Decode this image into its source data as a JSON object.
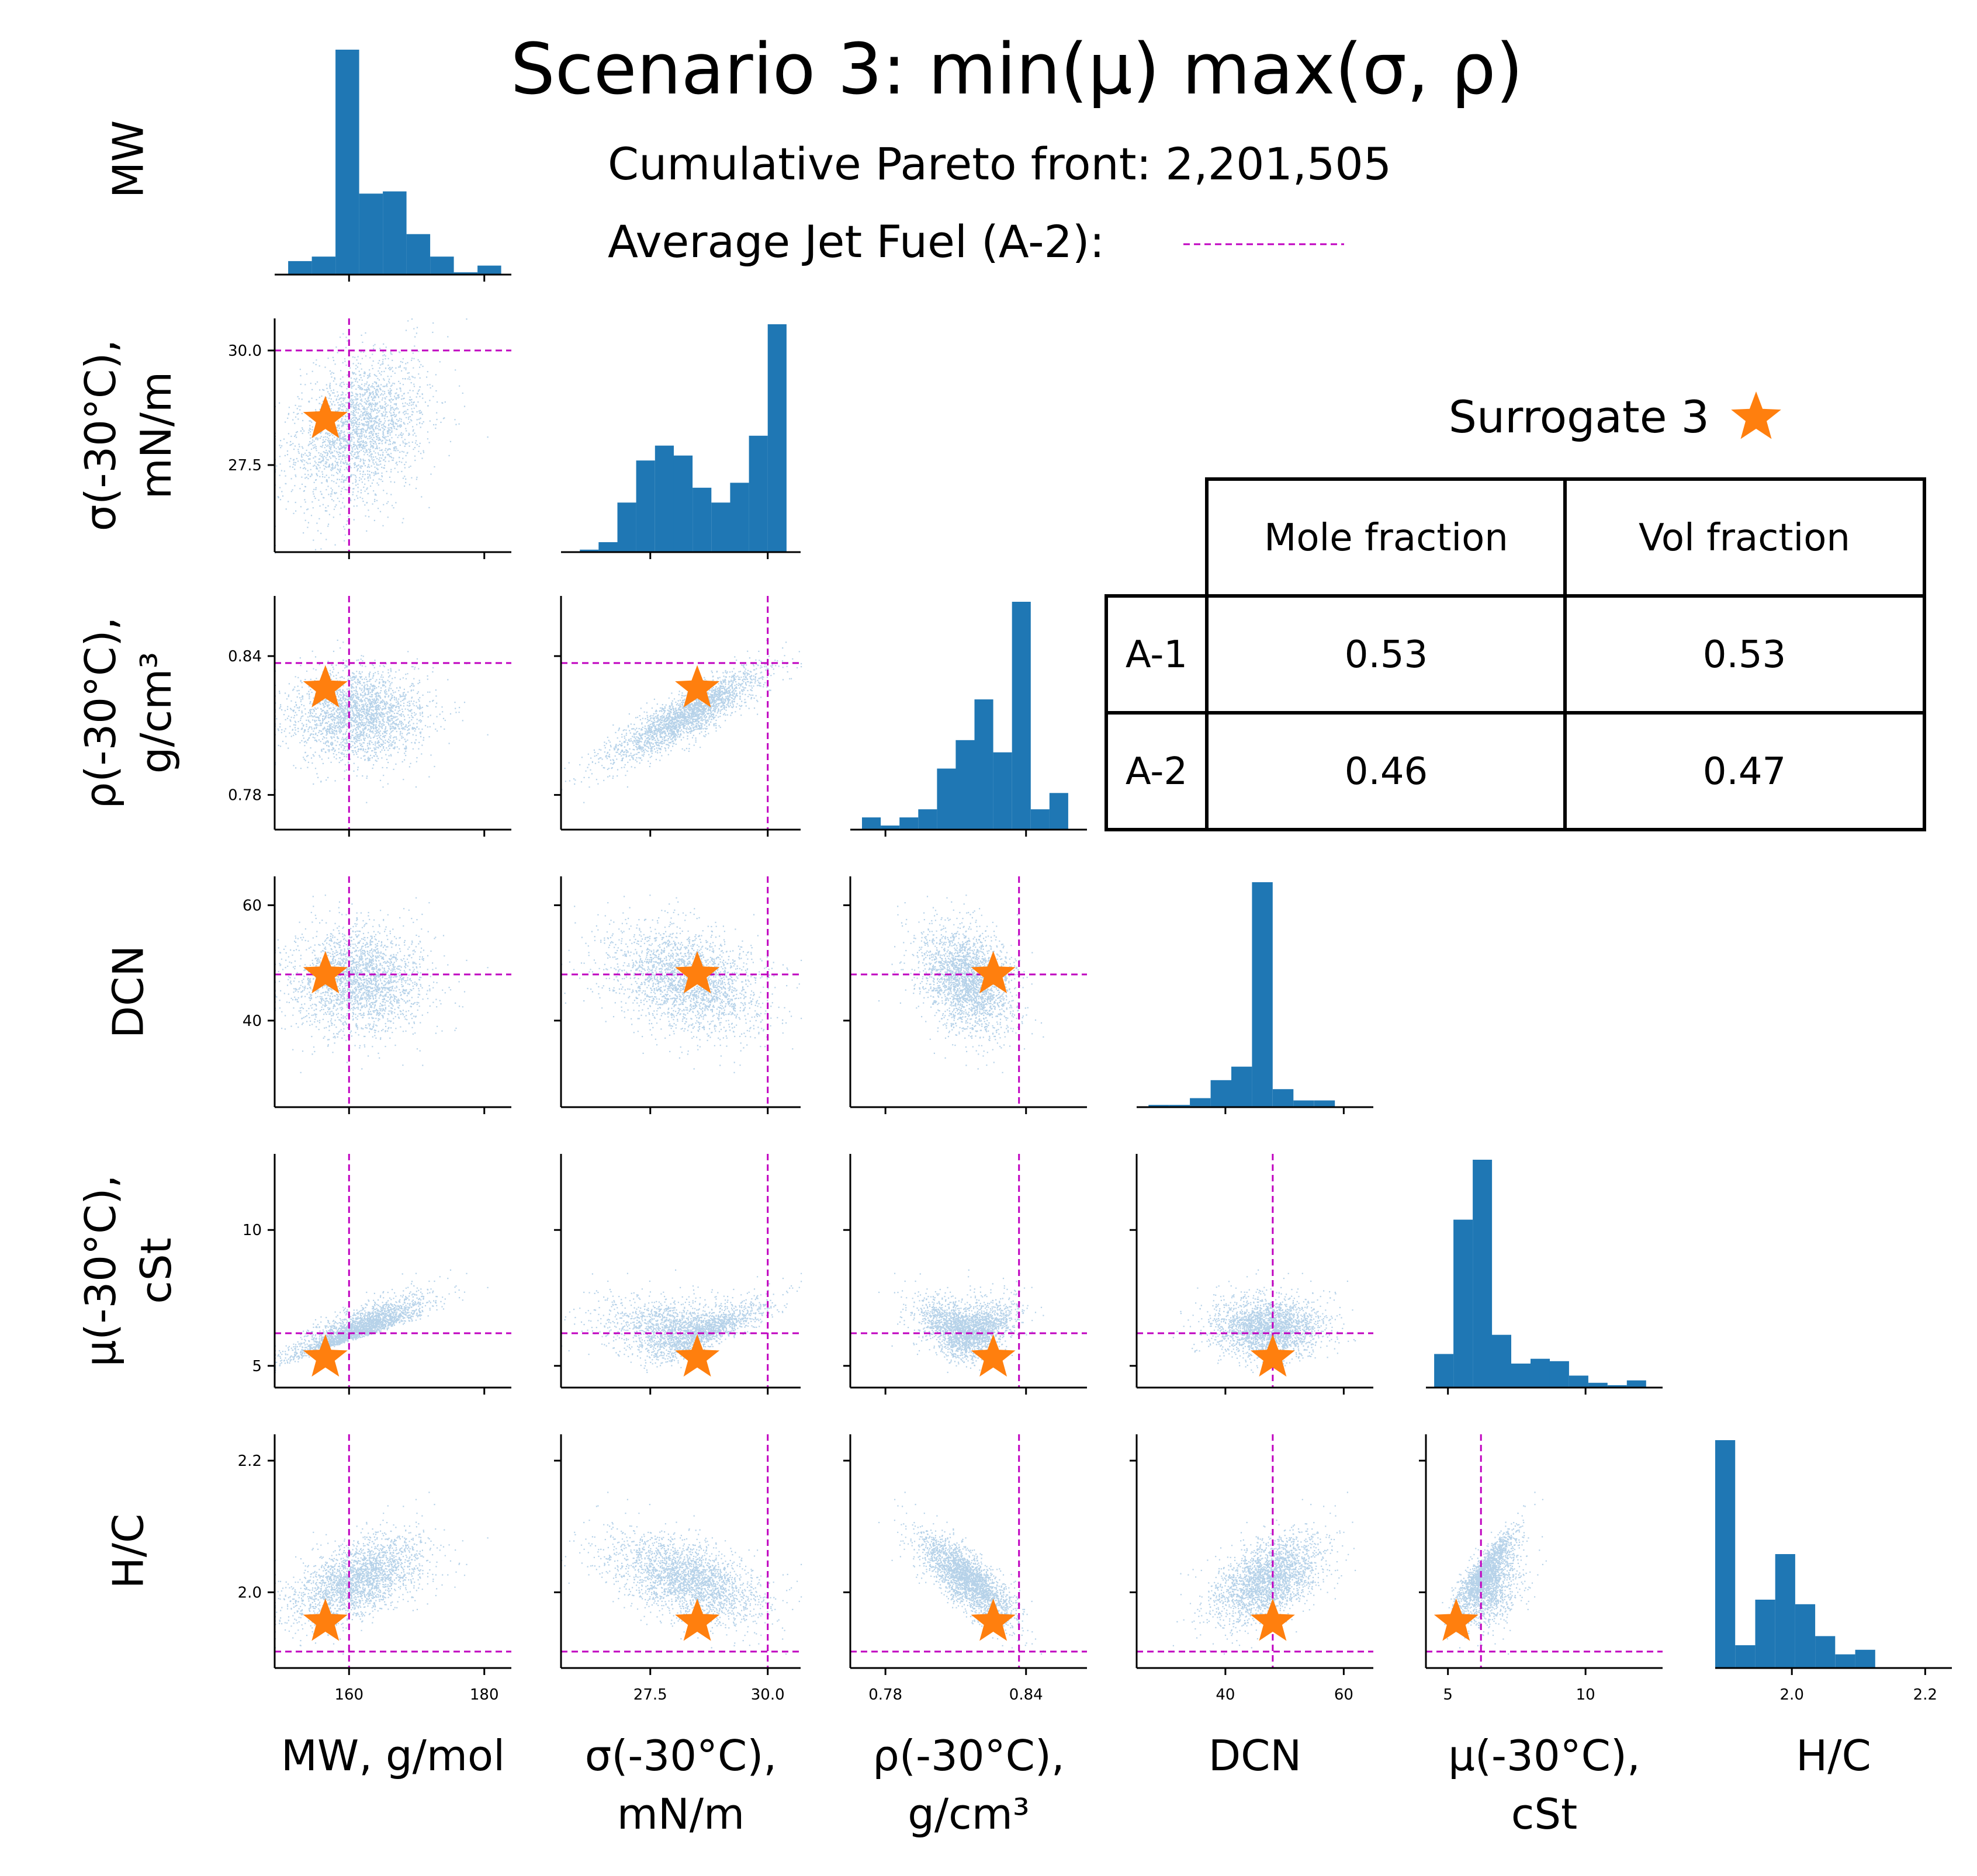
{
  "figure": {
    "title": "Scenario 3: min(μ) max(σ, ρ)",
    "subtitle": "Cumulative Pareto front: 2,201,505",
    "reference_label": "Average Jet Fuel (A-2):",
    "surrogate_label": "Surrogate 3"
  },
  "colors": {
    "hist": "#1f77b4",
    "scatter": "#2f7fc1",
    "reference": "#c000c0",
    "star": "#ff7f0e"
  },
  "table": {
    "columns": [
      "Mole fraction",
      "Vol fraction"
    ],
    "rows": [
      {
        "name": "A-1",
        "mole": "0.53",
        "vol": "0.53"
      },
      {
        "name": "A-2",
        "mole": "0.46",
        "vol": "0.47"
      }
    ]
  },
  "chart_data": {
    "type": "scatter",
    "variables": [
      {
        "key": "MW",
        "row_label": [
          "MW"
        ],
        "col_label": [
          "MW, g/mol"
        ],
        "range": [
          149,
          184
        ],
        "ticks": [
          160,
          180
        ],
        "tick_labels": [
          "160",
          "180"
        ],
        "reference": 160,
        "surrogate": 156.5
      },
      {
        "key": "sigma",
        "row_label": [
          "σ(-30°C),",
          "mN/m"
        ],
        "col_label": [
          "σ(-30°C),",
          "mN/m"
        ],
        "range": [
          25.6,
          30.7
        ],
        "ticks": [
          27.5,
          30.0
        ],
        "tick_labels": [
          "27.5",
          "30.0"
        ],
        "reference": 30.0,
        "surrogate": 28.5
      },
      {
        "key": "rho",
        "row_label": [
          "ρ(-30°C),",
          "g/cm³"
        ],
        "col_label": [
          "ρ(-30°C),",
          "g/cm³"
        ],
        "range": [
          0.765,
          0.866
        ],
        "ticks": [
          0.78,
          0.84
        ],
        "tick_labels": [
          "0.78",
          "0.84"
        ],
        "reference": 0.837,
        "surrogate": 0.826
      },
      {
        "key": "DCN",
        "row_label": [
          "DCN"
        ],
        "col_label": [
          "DCN"
        ],
        "range": [
          25,
          65
        ],
        "ticks": [
          40,
          60
        ],
        "tick_labels": [
          "40",
          "60"
        ],
        "reference": 48,
        "surrogate": 48
      },
      {
        "key": "mu",
        "row_label": [
          "μ(-30°C),",
          "cSt"
        ],
        "col_label": [
          "μ(-30°C),",
          "cSt"
        ],
        "range": [
          4.2,
          12.8
        ],
        "ticks": [
          5,
          10
        ],
        "tick_labels": [
          "5",
          "10"
        ],
        "reference": 6.2,
        "surrogate": 5.3
      },
      {
        "key": "HC",
        "row_label": [
          "H/C"
        ],
        "col_label": [
          "H/C"
        ],
        "range": [
          1.885,
          2.24
        ],
        "ticks": [
          2.0,
          2.2
        ],
        "tick_labels": [
          "2.0",
          "2.2"
        ],
        "reference": 1.91,
        "surrogate": 1.955
      }
    ],
    "histograms": [
      {
        "key": "MW",
        "bin_edges": [
          151,
          154.5,
          158,
          161.5,
          165,
          168.5,
          172,
          175.5,
          179,
          182.5
        ],
        "counts": [
          6,
          8,
          100,
          36,
          37,
          18,
          8,
          1,
          4
        ]
      },
      {
        "key": "sigma",
        "bin_edges": [
          26.0,
          26.4,
          26.8,
          27.2,
          27.6,
          28.0,
          28.4,
          28.8,
          29.2,
          29.6,
          30.0,
          30.4
        ],
        "counts": [
          1,
          4,
          20,
          37,
          43,
          39,
          26,
          20,
          28,
          47,
          92
        ]
      },
      {
        "key": "rho",
        "bin_edges": [
          0.77,
          0.778,
          0.786,
          0.794,
          0.802,
          0.81,
          0.818,
          0.826,
          0.834,
          0.842,
          0.85,
          0.858
        ],
        "counts": [
          6,
          2,
          6,
          10,
          30,
          44,
          64,
          38,
          112,
          10,
          18
        ]
      },
      {
        "key": "DCN",
        "bin_edges": [
          27,
          30.5,
          34,
          37.5,
          41,
          44.5,
          48,
          51.5,
          55,
          58.5,
          62
        ],
        "counts": [
          1,
          1,
          4,
          12,
          18,
          100,
          8,
          3,
          3,
          0
        ]
      },
      {
        "key": "mu",
        "bin_edges": [
          4.5,
          5.2,
          5.9,
          6.6,
          7.3,
          8.0,
          8.7,
          9.4,
          10.1,
          10.8,
          11.5,
          12.2
        ],
        "counts": [
          14,
          70,
          95,
          22,
          10,
          12,
          11,
          5,
          2,
          1,
          3
        ]
      },
      {
        "key": "HC",
        "bin_edges": [
          1.885,
          1.915,
          1.945,
          1.975,
          2.005,
          2.035,
          2.065,
          2.095,
          2.125,
          2.155
        ],
        "counts": [
          100,
          10,
          30,
          50,
          28,
          14,
          6,
          8,
          0
        ]
      }
    ]
  }
}
